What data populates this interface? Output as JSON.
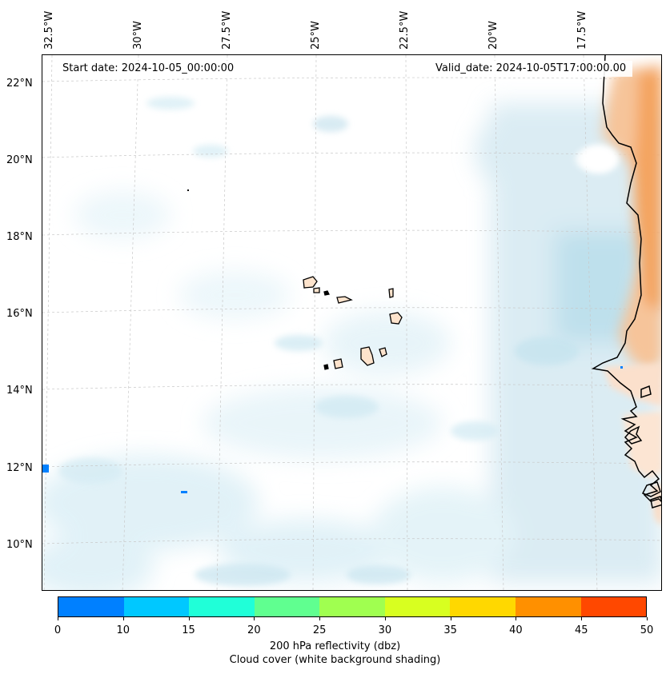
{
  "dates": {
    "start": "Start date: 2024-10-05_00:00:00",
    "valid": "Valid_date: 2024-10-05T17:00:00.00"
  },
  "lon_labels": [
    "32.5°W",
    "30°W",
    "27.5°W",
    "25°W",
    "22.5°W",
    "20°W",
    "17.5°W"
  ],
  "lat_labels": [
    "22°N",
    "20°N",
    "18°N",
    "16°N",
    "14°N",
    "12°N",
    "10°N"
  ],
  "colorbar": {
    "ticks": [
      "0",
      "10",
      "15",
      "20",
      "25",
      "30",
      "35",
      "40",
      "45",
      "50"
    ],
    "colors": [
      "#0080ff",
      "#00c8ff",
      "#20ffd8",
      "#60ff90",
      "#a0ff50",
      "#d8ff20",
      "#ffd800",
      "#ff9000",
      "#ff4800"
    ],
    "label_line1": "200 hPa reflectivity (dbz)",
    "label_line2": "Cloud cover (white background shading)"
  },
  "colors": {
    "land": "#f4a460",
    "cloud": "#add8e6",
    "coast": "#000000",
    "grid": "#c8c8c8"
  }
}
